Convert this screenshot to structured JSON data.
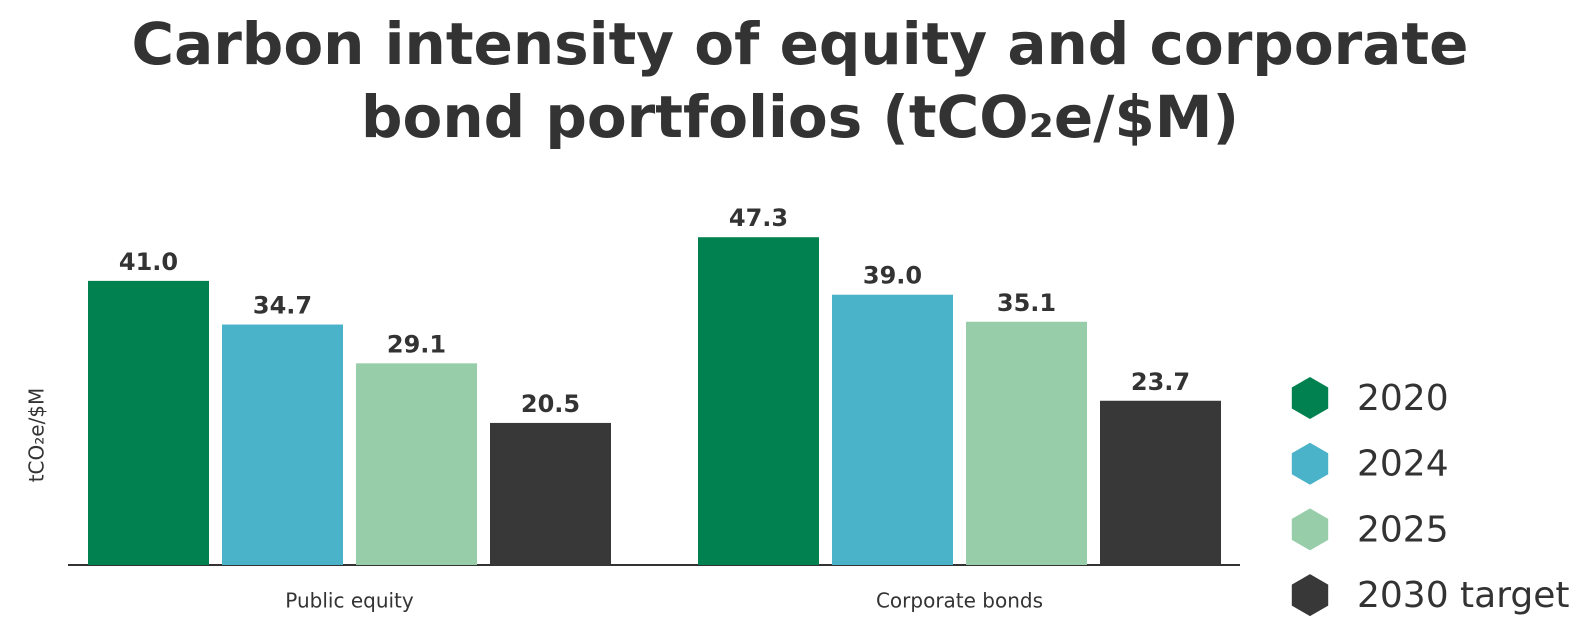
{
  "chart_data": {
    "type": "bar",
    "title": "Carbon intensity of equity and corporate bond portfolios (tCO₂e/$M)",
    "y_label": "tCO₂e/$M",
    "categories": [
      "Public equity",
      "Corporate bonds"
    ],
    "series": [
      {
        "name": "2020",
        "color": "#00814f",
        "values": [
          41.0,
          47.3
        ],
        "value_labels": [
          "41.0",
          "47.3"
        ]
      },
      {
        "name": "2024",
        "color": "#4bb3c9",
        "values": [
          34.7,
          39.0
        ],
        "value_labels": [
          "34.7",
          "39.0"
        ]
      },
      {
        "name": "2025",
        "color": "#98cdaa",
        "values": [
          29.1,
          35.1
        ],
        "value_labels": [
          "29.1",
          "35.1"
        ]
      },
      {
        "name": "2030 target",
        "color": "#383838",
        "values": [
          20.5,
          23.7
        ],
        "value_labels": [
          "20.5",
          "23.7"
        ]
      }
    ],
    "ylim": [
      0,
      50
    ],
    "legend": "right"
  }
}
